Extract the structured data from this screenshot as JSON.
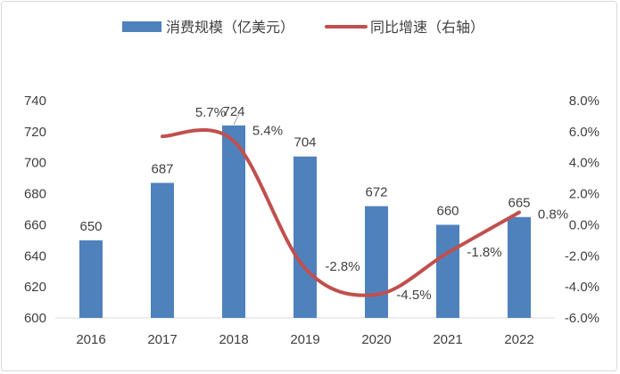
{
  "chart_data": {
    "type": "bar+line",
    "categories": [
      "2016",
      "2017",
      "2018",
      "2019",
      "2020",
      "2021",
      "2022"
    ],
    "series": [
      {
        "name": "消费规模（亿美元）",
        "type": "bar",
        "axis": "left",
        "values": [
          650,
          687,
          724,
          704,
          672,
          660,
          665
        ],
        "labels": [
          "650",
          "687",
          "724",
          "704",
          "672",
          "660",
          "665"
        ],
        "color": "#4F81BD"
      },
      {
        "name": "同比增速（右轴）",
        "type": "line",
        "axis": "right",
        "x": [
          "2017",
          "2018",
          "2019",
          "2020",
          "2021",
          "2022"
        ],
        "values": [
          5.7,
          5.4,
          -2.8,
          -4.5,
          -1.8,
          0.8
        ],
        "labels": [
          "5.7%",
          "5.4%",
          "-2.8%",
          "-4.5%",
          "-1.8%",
          "0.8%"
        ],
        "color": "#C0504D"
      }
    ],
    "left_axis": {
      "ylim": [
        600,
        740
      ],
      "ticks": [
        "600",
        "620",
        "640",
        "660",
        "680",
        "700",
        "720",
        "740"
      ]
    },
    "right_axis": {
      "ylim": [
        -6,
        8
      ],
      "ticks": [
        "-6.0%",
        "-4.0%",
        "-2.0%",
        "0.0%",
        "2.0%",
        "4.0%",
        "6.0%",
        "8.0%"
      ]
    },
    "legend": "top",
    "grid": false
  }
}
